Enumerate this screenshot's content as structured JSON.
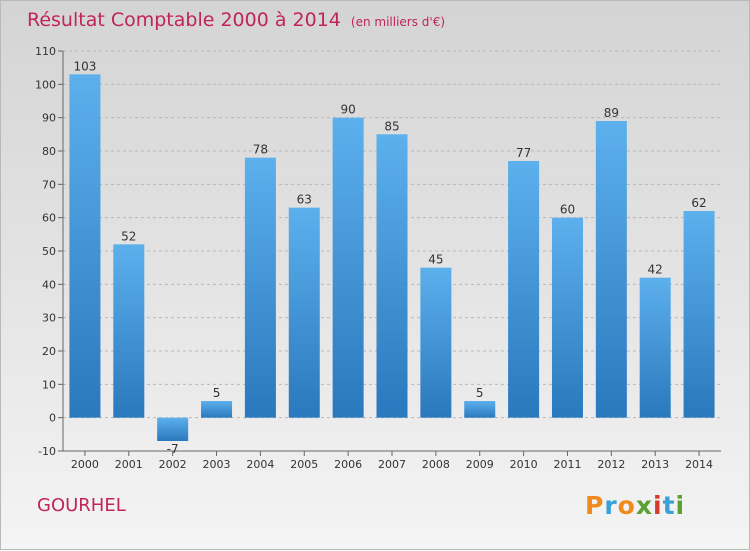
{
  "header": {
    "title": "Résultat Comptable 2000 à 2014",
    "subtitle": "(en milliers d'€)"
  },
  "footer": {
    "commune": "GOURHEL",
    "logo_letters": [
      "P",
      "r",
      "o",
      "x",
      "i",
      "t",
      "i"
    ],
    "logo_colors": [
      "#f08a1c",
      "#3aa0d8",
      "#f08a1c",
      "#5aa032",
      "#d63a2a",
      "#3aa0d8",
      "#5aa032"
    ]
  },
  "chart_data": {
    "type": "bar",
    "title": "Résultat Comptable 2000 à 2014",
    "subtitle": "(en milliers d'€)",
    "categories": [
      "2000",
      "2001",
      "2002",
      "2003",
      "2004",
      "2005",
      "2006",
      "2007",
      "2008",
      "2009",
      "2010",
      "2011",
      "2012",
      "2013",
      "2014"
    ],
    "values": [
      103,
      52,
      -7,
      5,
      78,
      63,
      90,
      85,
      45,
      5,
      77,
      60,
      89,
      42,
      62
    ],
    "ylim": [
      -10,
      110
    ],
    "yticks": [
      -10,
      0,
      10,
      20,
      30,
      40,
      50,
      60,
      70,
      80,
      90,
      100,
      110
    ],
    "grid": true,
    "bar_color": "#3d94d8",
    "bar_color_dark": "#2a78bd"
  }
}
